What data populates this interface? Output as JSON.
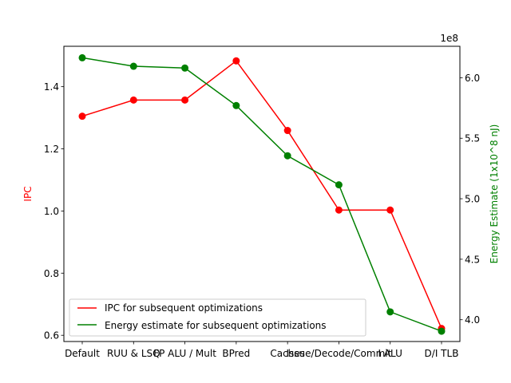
{
  "chart_data": {
    "type": "line",
    "categories": [
      "Default",
      "RUU & LSQ",
      "FP ALU / Mult",
      "BPred",
      "Caches",
      "Issue/Decode/Commit",
      "I ALU",
      "D/I TLB"
    ],
    "series": [
      {
        "name": "IPC for subsequent optimizations",
        "axis": "left",
        "color": "#ff0000",
        "values": [
          1.305,
          1.357,
          1.357,
          1.483,
          1.259,
          1.003,
          1.003,
          0.622
        ]
      },
      {
        "name": "Energy estimate for subsequent optimizations",
        "axis": "right",
        "color": "#008000",
        "values": [
          616500000,
          609500000,
          608000000,
          577000000,
          535500000,
          511500000,
          406500000,
          390500000
        ]
      }
    ],
    "ylabel_left": "IPC",
    "ylabel_right": "Energy Estimate (1x10^8 nJ)",
    "ylim_left": [
      0.58,
      1.53
    ],
    "ylim_right": [
      382000000,
      626000000
    ],
    "yticks_left": [
      {
        "value": 0.6,
        "label": "0.6"
      },
      {
        "value": 0.8,
        "label": "0.8"
      },
      {
        "value": 1.0,
        "label": "1.0"
      },
      {
        "value": 1.2,
        "label": "1.2"
      },
      {
        "value": 1.4,
        "label": "1.4"
      }
    ],
    "yticks_right": [
      {
        "value": 400000000,
        "label": "4.0"
      },
      {
        "value": 450000000,
        "label": "4.5"
      },
      {
        "value": 500000000,
        "label": "5.0"
      },
      {
        "value": 550000000,
        "label": "5.5"
      },
      {
        "value": 600000000,
        "label": "6.0"
      }
    ],
    "right_axis_offset_text": "1e8",
    "legend_position": "lower-left",
    "grid": false
  }
}
